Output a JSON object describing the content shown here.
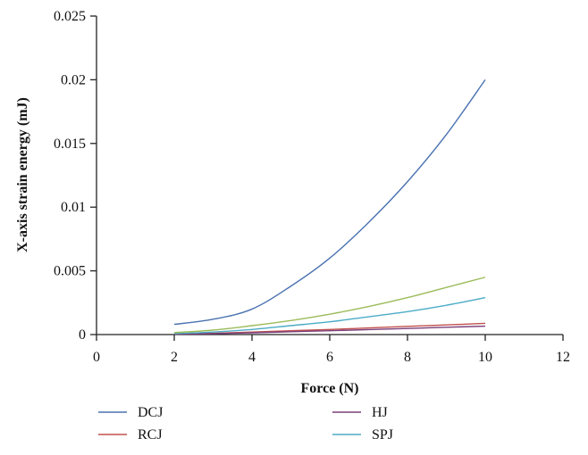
{
  "chart_data": {
    "type": "line",
    "title": "",
    "xlabel": "Force (N)",
    "ylabel": "X-axis strain energy (mJ)",
    "xlim": [
      0,
      12
    ],
    "ylim": [
      0,
      0.025
    ],
    "x_ticks": [
      0,
      2,
      4,
      6,
      8,
      10,
      12
    ],
    "x_tick_labels": [
      "0",
      "2",
      "4",
      "6",
      "8",
      "10",
      "12"
    ],
    "y_ticks": [
      0,
      0.005,
      0.01,
      0.015,
      0.02,
      0.025
    ],
    "y_tick_labels": [
      "0",
      "0.005",
      "0.01",
      "0.015",
      "0.02",
      "0.025"
    ],
    "grid": false,
    "legend_placement": "bottom",
    "x": [
      2,
      3,
      4,
      5,
      6,
      7,
      8,
      9,
      10
    ],
    "series": [
      {
        "name": "DCJ",
        "color": "#4a72b0",
        "values": [
          0.0008,
          0.0012,
          0.002,
          0.0038,
          0.006,
          0.0088,
          0.012,
          0.0157,
          0.02
        ]
      },
      {
        "name": "RCJ",
        "color": "#c0504d",
        "values": [
          5e-05,
          0.0001,
          0.0002,
          0.0003,
          0.0004,
          0.00052,
          0.00064,
          0.00076,
          0.00088
        ]
      },
      {
        "name": "HJ",
        "color": "#7b3f7a",
        "values": [
          3e-05,
          7e-05,
          0.00014,
          0.00022,
          0.0003,
          0.00039,
          0.00048,
          0.00057,
          0.00066
        ]
      },
      {
        "name": "SPJ",
        "color": "#4bacc6",
        "values": [
          8e-05,
          0.0002,
          0.0004,
          0.0007,
          0.001,
          0.0014,
          0.0018,
          0.0023,
          0.0029
        ]
      },
      {
        "name": "",
        "color": "#9bbb59",
        "values": [
          0.00015,
          0.00035,
          0.0007,
          0.0011,
          0.0016,
          0.0022,
          0.0029,
          0.0037,
          0.0045
        ]
      }
    ]
  }
}
